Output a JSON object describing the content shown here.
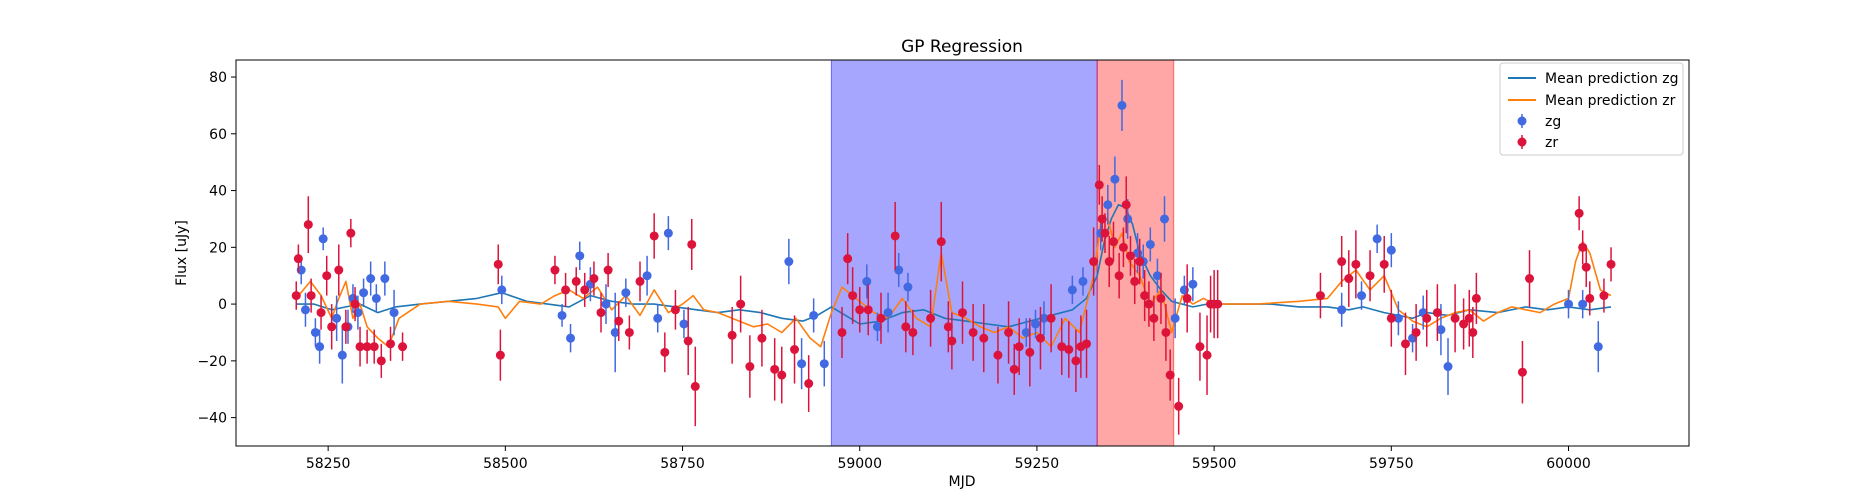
{
  "chart_data": {
    "type": "scatter",
    "title": "GP Regression",
    "xlabel": "MJD",
    "ylabel": "Flux [uJy]",
    "xlim": [
      58120,
      60170
    ],
    "ylim": [
      -50,
      86
    ],
    "xticks": [
      58250,
      58500,
      58750,
      59000,
      59250,
      59500,
      59750,
      60000
    ],
    "yticks": [
      -40,
      -20,
      0,
      20,
      40,
      60,
      80
    ],
    "grid": false,
    "legend_position": "top-right",
    "legend": [
      {
        "label": "Mean prediction zg",
        "kind": "line",
        "color": "#1f77b4"
      },
      {
        "label": "Mean prediction zr",
        "kind": "line",
        "color": "#ff7f0e"
      },
      {
        "label": "zg",
        "kind": "errorbar",
        "color": "#4169e1"
      },
      {
        "label": "zr",
        "kind": "errorbar",
        "color": "#dc143c"
      }
    ],
    "spans": [
      {
        "x0": 58960,
        "x1": 59335,
        "color": "#0000ff",
        "opacity": 0.35
      },
      {
        "x0": 59335,
        "x1": 59443,
        "color": "#ff0000",
        "opacity": 0.35
      }
    ],
    "series": [
      {
        "name": "zg",
        "kind": "errorbar",
        "color": "#4169e1",
        "x": [
          58212,
          58218,
          58232,
          58238,
          58243,
          58262,
          58270,
          58278,
          58285,
          58292,
          58300,
          58310,
          58318,
          58330,
          58343,
          58495,
          58580,
          58592,
          58605,
          58620,
          58642,
          58655,
          58670,
          58700,
          58715,
          58730,
          58752,
          58900,
          58918,
          58935,
          58950,
          59010,
          59025,
          59040,
          59055,
          59068,
          59235,
          59248,
          59260,
          59300,
          59315,
          59340,
          59350,
          59360,
          59370,
          59378,
          59392,
          59400,
          59410,
          59420,
          59430,
          59445,
          59458,
          59470,
          59680,
          59708,
          59730,
          59750,
          59760,
          59780,
          59795,
          59820,
          59830,
          60000,
          60020,
          60042
        ],
        "y": [
          12,
          -2,
          -10,
          -15,
          23,
          -5,
          -18,
          -8,
          2,
          -3,
          4,
          9,
          2,
          9,
          -3,
          5,
          -4,
          -12,
          17,
          7,
          0,
          -10,
          4,
          10,
          -5,
          25,
          -7,
          15,
          -21,
          -4,
          -21,
          8,
          -8,
          -3,
          12,
          6,
          -10,
          -7,
          -5,
          5,
          8,
          25,
          35,
          44,
          70,
          30,
          18,
          15,
          21,
          10,
          30,
          -5,
          5,
          7,
          -2,
          3,
          23,
          19,
          -5,
          -12,
          -3,
          -9,
          -22,
          0,
          0,
          -15
        ],
        "err": [
          5,
          6,
          5,
          6,
          4,
          8,
          10,
          6,
          5,
          6,
          5,
          6,
          5,
          6,
          8,
          5,
          4,
          5,
          5,
          6,
          7,
          14,
          5,
          7,
          5,
          6,
          5,
          8,
          9,
          6,
          8,
          6,
          5,
          7,
          6,
          5,
          5,
          5,
          6,
          5,
          5,
          6,
          7,
          8,
          9,
          7,
          7,
          6,
          6,
          6,
          8,
          7,
          5,
          6,
          6,
          5,
          5,
          6,
          6,
          5,
          6,
          9,
          10,
          5,
          5,
          9
        ]
      },
      {
        "name": "zr",
        "kind": "errorbar",
        "color": "#dc143c",
        "x": [
          58205,
          58208,
          58222,
          58226,
          58240,
          58248,
          58255,
          58265,
          58275,
          58282,
          58288,
          58295,
          58305,
          58315,
          58325,
          58338,
          58355,
          58490,
          58493,
          58570,
          58585,
          58600,
          58612,
          58625,
          58635,
          58645,
          58660,
          58675,
          58690,
          58710,
          58725,
          58740,
          58758,
          58763,
          58768,
          58820,
          58832,
          58845,
          58862,
          58880,
          58890,
          58908,
          58928,
          58975,
          58983,
          58990,
          59000,
          59012,
          59030,
          59050,
          59065,
          59075,
          59100,
          59115,
          59125,
          59130,
          59145,
          59160,
          59175,
          59195,
          59210,
          59218,
          59225,
          59240,
          59255,
          59270,
          59285,
          59295,
          59305,
          59312,
          59320,
          59330,
          59338,
          59342,
          59346,
          59352,
          59358,
          59366,
          59372,
          59376,
          59382,
          59388,
          59395,
          59402,
          59408,
          59415,
          59425,
          59432,
          59438,
          59450,
          59462,
          59480,
          59490,
          59495,
          59500,
          59505,
          59650,
          59680,
          59690,
          59700,
          59720,
          59740,
          59750,
          59770,
          59785,
          59800,
          59815,
          59840,
          59852,
          59860,
          59865,
          59870,
          59935,
          59945,
          60015,
          60020,
          60025,
          60030,
          60050,
          60060
        ],
        "y": [
          3,
          16,
          28,
          3,
          -3,
          10,
          -8,
          12,
          -8,
          25,
          0,
          -15,
          -15,
          -15,
          -20,
          -14,
          -15,
          14,
          -18,
          12,
          5,
          8,
          5,
          9,
          -3,
          12,
          -6,
          -10,
          8,
          24,
          -17,
          -2,
          -13,
          21,
          -29,
          -11,
          0,
          -22,
          -12,
          -23,
          -25,
          -16,
          -28,
          -10,
          16,
          3,
          -2,
          -2,
          -5,
          24,
          -8,
          -10,
          -5,
          22,
          -8,
          -13,
          -3,
          -10,
          -12,
          -18,
          -10,
          -23,
          -15,
          -17,
          -12,
          -5,
          -15,
          -16,
          -20,
          -15,
          -14,
          15,
          42,
          30,
          25,
          15,
          22,
          10,
          20,
          35,
          17,
          8,
          15,
          3,
          0,
          -5,
          2,
          -10,
          -25,
          -36,
          2,
          -15,
          -18,
          0,
          0,
          0,
          3,
          15,
          9,
          14,
          10,
          14,
          -5,
          -14,
          -10,
          -5,
          -3,
          -5,
          -7,
          -5,
          -10,
          2,
          -24,
          9,
          32,
          20,
          13,
          2,
          3,
          14
        ],
        "err": [
          5,
          5,
          10,
          6,
          6,
          7,
          8,
          9,
          6,
          5,
          6,
          7,
          6,
          6,
          6,
          6,
          5,
          7,
          9,
          5,
          6,
          5,
          6,
          6,
          7,
          6,
          7,
          6,
          7,
          8,
          7,
          7,
          12,
          9,
          14,
          10,
          10,
          11,
          10,
          11,
          10,
          12,
          10,
          9,
          9,
          10,
          8,
          9,
          9,
          12,
          9,
          8,
          10,
          14,
          9,
          10,
          11,
          10,
          12,
          10,
          11,
          9,
          10,
          12,
          11,
          12,
          10,
          10,
          11,
          11,
          12,
          12,
          7,
          8,
          7,
          9,
          7,
          8,
          7,
          10,
          7,
          8,
          8,
          9,
          8,
          8,
          9,
          10,
          9,
          10,
          12,
          12,
          14,
          10,
          12,
          12,
          8,
          9,
          10,
          12,
          9,
          10,
          10,
          11,
          10,
          10,
          10,
          12,
          9,
          10,
          9,
          9,
          11,
          10,
          6,
          6,
          7,
          6,
          6,
          6
        ]
      },
      {
        "name": "Mean prediction zg",
        "kind": "line",
        "color": "#1f77b4",
        "x": [
          58205,
          58230,
          58255,
          58275,
          58295,
          58320,
          58345,
          58380,
          58420,
          58460,
          58495,
          58530,
          58560,
          58590,
          58620,
          58650,
          58680,
          58710,
          58740,
          58770,
          58800,
          58830,
          58860,
          58890,
          58920,
          58940,
          58960,
          58980,
          59000,
          59030,
          59060,
          59090,
          59120,
          59150,
          59180,
          59210,
          59240,
          59270,
          59300,
          59320,
          59335,
          59345,
          59355,
          59365,
          59375,
          59385,
          59395,
          59410,
          59425,
          59440,
          59455,
          59470,
          59490,
          59510,
          59540,
          59580,
          59620,
          59660,
          59690,
          59710,
          59740,
          59760,
          59780,
          59800,
          59830,
          59860,
          59900,
          59940,
          59970,
          60000,
          60030,
          60060
        ],
        "y": [
          0,
          0,
          -2,
          -1,
          0,
          -3,
          -1,
          0,
          1,
          2,
          4,
          1,
          0,
          -1,
          3,
          1,
          0,
          0,
          -1,
          -2,
          -3,
          -2,
          -3,
          -5,
          -6,
          -4,
          -1,
          -4,
          -7,
          -6,
          -3,
          -2,
          -5,
          -6,
          -7,
          -8,
          -6,
          -4,
          -2,
          2,
          10,
          22,
          30,
          35,
          34,
          28,
          18,
          10,
          5,
          1,
          0,
          -1,
          0,
          0,
          0,
          0,
          -1,
          -1,
          -2,
          -1,
          -3,
          -4,
          -5,
          -3,
          -4,
          -2,
          -3,
          -1,
          -2,
          -1,
          -2,
          -1
        ]
      },
      {
        "name": "Mean prediction zr",
        "kind": "line",
        "color": "#ff7f0e",
        "x": [
          58205,
          58215,
          58225,
          58240,
          58255,
          58265,
          58275,
          58285,
          58295,
          58305,
          58320,
          58335,
          58350,
          58380,
          58420,
          58460,
          58490,
          58500,
          58520,
          58550,
          58570,
          58590,
          58610,
          58630,
          58650,
          58670,
          58690,
          58710,
          58730,
          58750,
          58765,
          58780,
          58800,
          58830,
          58850,
          58870,
          58890,
          58910,
          58930,
          58945,
          58960,
          58975,
          58990,
          59005,
          59020,
          59040,
          59060,
          59080,
          59100,
          59115,
          59130,
          59150,
          59170,
          59190,
          59210,
          59230,
          59250,
          59270,
          59290,
          59310,
          59330,
          59340,
          59350,
          59360,
          59370,
          59380,
          59395,
          59410,
          59425,
          59440,
          59455,
          59470,
          59485,
          59500,
          59520,
          59560,
          59620,
          59660,
          59680,
          59700,
          59720,
          59740,
          59760,
          59780,
          59800,
          59820,
          59840,
          59860,
          59880,
          59900,
          59920,
          59940,
          59960,
          59980,
          60000,
          60010,
          60020,
          60030,
          60045,
          60060
        ],
        "y": [
          2,
          5,
          8,
          3,
          -5,
          2,
          8,
          -5,
          0,
          -8,
          -12,
          -15,
          -5,
          0,
          1,
          0,
          -1,
          -5,
          1,
          0,
          3,
          5,
          2,
          6,
          -2,
          3,
          -4,
          5,
          -3,
          0,
          3,
          -2,
          -3,
          -6,
          -8,
          -7,
          -10,
          -5,
          -12,
          -15,
          -3,
          6,
          3,
          0,
          -3,
          -5,
          2,
          -5,
          -8,
          18,
          -3,
          -5,
          -8,
          -10,
          -8,
          -12,
          -10,
          -15,
          -5,
          -10,
          10,
          28,
          30,
          20,
          25,
          15,
          10,
          0,
          5,
          -10,
          3,
          0,
          2,
          0,
          0,
          0,
          1,
          2,
          8,
          12,
          5,
          10,
          -2,
          -6,
          -8,
          -5,
          -3,
          -2,
          -6,
          -3,
          -1,
          -2,
          -3,
          0,
          2,
          15,
          22,
          18,
          5,
          3
        ]
      }
    ]
  }
}
